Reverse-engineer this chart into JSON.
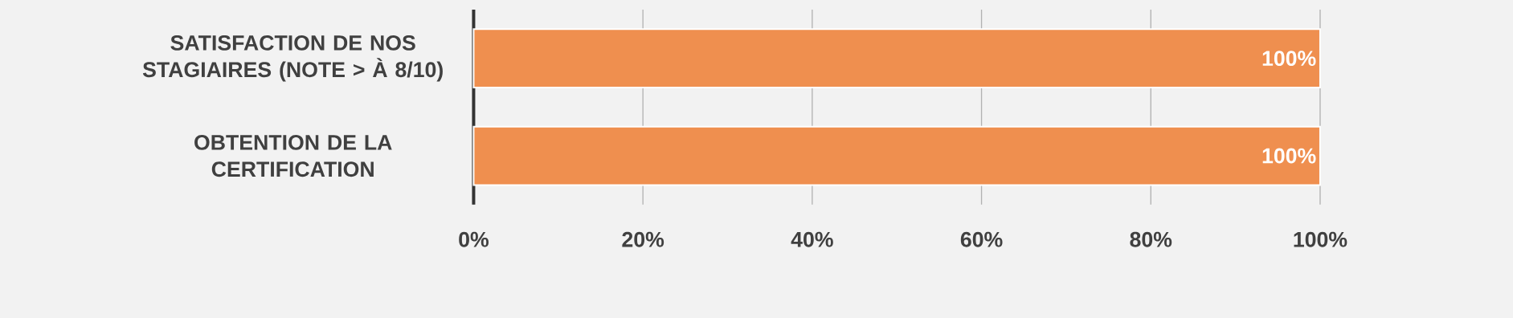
{
  "chart_data": {
    "type": "bar",
    "orientation": "horizontal",
    "categories": [
      "SATISFACTION DE NOS STAGIAIRES (NOTE > À 8/10)",
      "OBTENTION DE LA CERTIFICATION"
    ],
    "values": [
      100,
      100
    ],
    "color": "#ef8f4f",
    "value_labels": [
      "100%",
      "100%"
    ],
    "xlim": [
      0,
      100
    ],
    "xticks": [
      {
        "value": 0,
        "label": "0%"
      },
      {
        "value": 20,
        "label": "20%"
      },
      {
        "value": 40,
        "label": "40%"
      },
      {
        "value": 60,
        "label": "60%"
      },
      {
        "value": 80,
        "label": "80%"
      },
      {
        "value": 100,
        "label": "100%"
      }
    ],
    "grid": "x"
  }
}
